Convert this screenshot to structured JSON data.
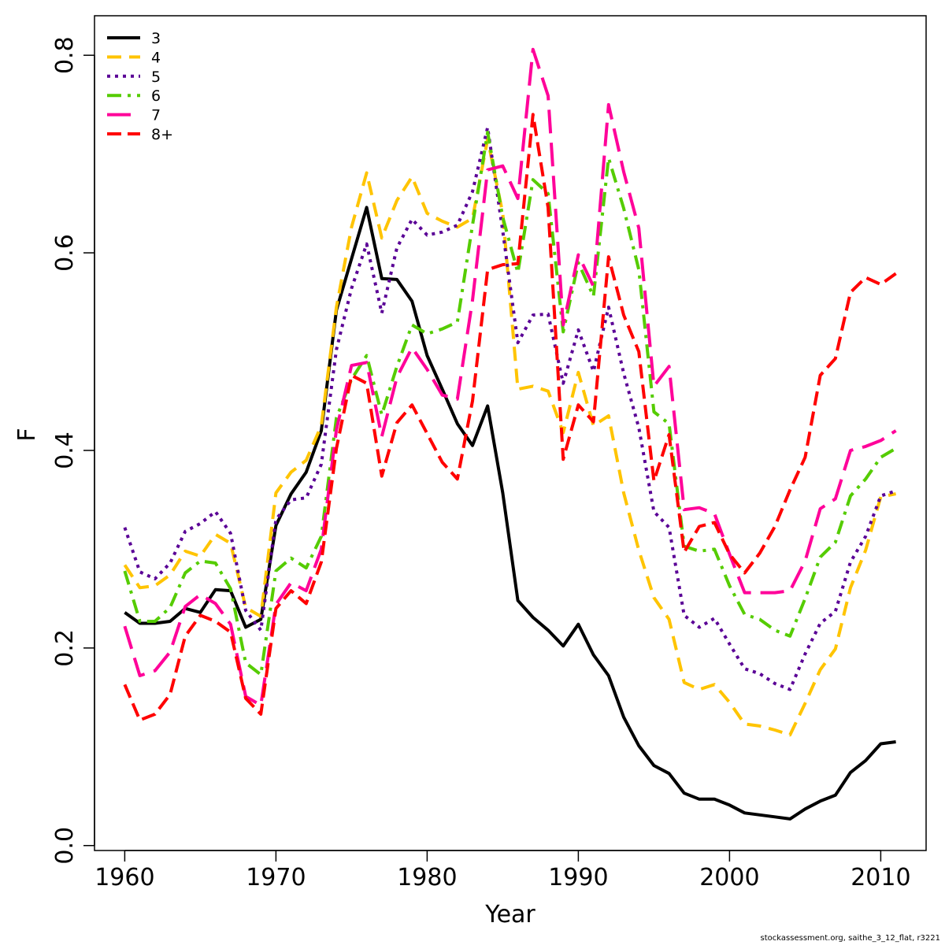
{
  "chart_data": {
    "type": "line",
    "xlabel": "Year",
    "ylabel": "F",
    "xlim": [
      1958,
      2013
    ],
    "ylim": [
      -0.005,
      0.84
    ],
    "x_ticks": [
      1960,
      1970,
      1980,
      1990,
      2000,
      2010
    ],
    "y_ticks": [
      "0.0",
      "0.2",
      "0.4",
      "0.6",
      "0.8"
    ],
    "grid": false,
    "legend_position": "top-left",
    "x": [
      1960,
      1961,
      1962,
      1963,
      1964,
      1965,
      1966,
      1967,
      1968,
      1969,
      1970,
      1971,
      1972,
      1973,
      1974,
      1975,
      1976,
      1977,
      1978,
      1979,
      1980,
      1981,
      1982,
      1983,
      1984,
      1985,
      1986,
      1987,
      1988,
      1989,
      1990,
      1991,
      1992,
      1993,
      1994,
      1995,
      1996,
      1997,
      1998,
      1999,
      2000,
      2001,
      2002,
      2003,
      2004,
      2005,
      2006,
      2007,
      2008,
      2009,
      2010,
      2011
    ],
    "series": [
      {
        "name": "3",
        "color": "#000000",
        "dash": "solid",
        "width": 4,
        "values": [
          0.236,
          0.225,
          0.225,
          0.227,
          0.24,
          0.236,
          0.259,
          0.258,
          0.221,
          0.229,
          0.324,
          0.356,
          0.378,
          0.42,
          0.542,
          0.594,
          0.646,
          0.574,
          0.573,
          0.551,
          0.496,
          0.462,
          0.427,
          0.405,
          0.445,
          0.357,
          0.248,
          0.231,
          0.218,
          0.202,
          0.224,
          0.193,
          0.172,
          0.13,
          0.101,
          0.081,
          0.073,
          0.053,
          0.047,
          0.047,
          0.041,
          0.033,
          0.031,
          0.029,
          0.027,
          0.037,
          0.045,
          0.051,
          0.074,
          0.086,
          0.103,
          0.105
        ]
      },
      {
        "name": "4",
        "color": "#ffc400",
        "dash": "18,10",
        "width": 4,
        "values": [
          0.284,
          0.261,
          0.263,
          0.274,
          0.298,
          0.293,
          0.315,
          0.306,
          0.241,
          0.232,
          0.357,
          0.378,
          0.39,
          0.425,
          0.545,
          0.626,
          0.681,
          0.615,
          0.653,
          0.677,
          0.64,
          0.632,
          0.626,
          0.635,
          0.715,
          0.64,
          0.462,
          0.465,
          0.46,
          0.418,
          0.479,
          0.425,
          0.435,
          0.357,
          0.299,
          0.251,
          0.229,
          0.165,
          0.158,
          0.163,
          0.145,
          0.123,
          0.121,
          0.117,
          0.112,
          0.144,
          0.178,
          0.199,
          0.261,
          0.299,
          0.353,
          0.356
        ]
      },
      {
        "name": "5",
        "color": "#5a0096",
        "dash": "4,6",
        "width": 4,
        "values": [
          0.322,
          0.277,
          0.27,
          0.286,
          0.318,
          0.326,
          0.338,
          0.316,
          0.238,
          0.218,
          0.33,
          0.35,
          0.352,
          0.386,
          0.502,
          0.564,
          0.609,
          0.539,
          0.605,
          0.634,
          0.618,
          0.621,
          0.628,
          0.662,
          0.727,
          0.622,
          0.509,
          0.537,
          0.538,
          0.468,
          0.522,
          0.48,
          0.545,
          0.478,
          0.423,
          0.338,
          0.322,
          0.233,
          0.221,
          0.23,
          0.204,
          0.179,
          0.174,
          0.164,
          0.158,
          0.194,
          0.225,
          0.237,
          0.287,
          0.313,
          0.354,
          0.359
        ]
      },
      {
        "name": "6",
        "color": "#55cc00",
        "dash": "18,8,4,8",
        "width": 4,
        "values": [
          0.278,
          0.227,
          0.227,
          0.241,
          0.276,
          0.288,
          0.286,
          0.26,
          0.185,
          0.173,
          0.278,
          0.291,
          0.281,
          0.313,
          0.433,
          0.472,
          0.496,
          0.436,
          0.485,
          0.527,
          0.518,
          0.523,
          0.53,
          0.628,
          0.722,
          0.636,
          0.58,
          0.674,
          0.66,
          0.52,
          0.59,
          0.556,
          0.696,
          0.645,
          0.583,
          0.439,
          0.427,
          0.303,
          0.298,
          0.3,
          0.263,
          0.234,
          0.229,
          0.218,
          0.212,
          0.25,
          0.292,
          0.307,
          0.354,
          0.371,
          0.393,
          0.402
        ]
      },
      {
        "name": "7",
        "color": "#ff0099",
        "dash": "30,12",
        "width": 4,
        "values": [
          0.222,
          0.172,
          0.177,
          0.196,
          0.242,
          0.254,
          0.245,
          0.224,
          0.151,
          0.142,
          0.244,
          0.266,
          0.258,
          0.3,
          0.421,
          0.486,
          0.489,
          0.414,
          0.474,
          0.504,
          0.482,
          0.456,
          0.452,
          0.552,
          0.684,
          0.688,
          0.655,
          0.806,
          0.759,
          0.527,
          0.598,
          0.566,
          0.75,
          0.682,
          0.625,
          0.465,
          0.485,
          0.34,
          0.342,
          0.336,
          0.295,
          0.256,
          0.256,
          0.256,
          0.258,
          0.288,
          0.341,
          0.351,
          0.4,
          0.404,
          0.41,
          0.42
        ]
      },
      {
        "name": "8+",
        "color": "#ff0000",
        "dash": "18,8",
        "width": 4,
        "values": [
          0.163,
          0.127,
          0.133,
          0.153,
          0.212,
          0.233,
          0.227,
          0.216,
          0.149,
          0.133,
          0.24,
          0.258,
          0.245,
          0.287,
          0.402,
          0.476,
          0.468,
          0.374,
          0.428,
          0.446,
          0.417,
          0.388,
          0.371,
          0.45,
          0.583,
          0.588,
          0.589,
          0.74,
          0.646,
          0.391,
          0.446,
          0.429,
          0.596,
          0.537,
          0.5,
          0.369,
          0.416,
          0.297,
          0.323,
          0.327,
          0.295,
          0.276,
          0.296,
          0.323,
          0.36,
          0.393,
          0.476,
          0.493,
          0.56,
          0.575,
          0.568,
          0.579
        ]
      }
    ]
  },
  "footer": "stockassessment.org, saithe_3_12_flat, r3221"
}
